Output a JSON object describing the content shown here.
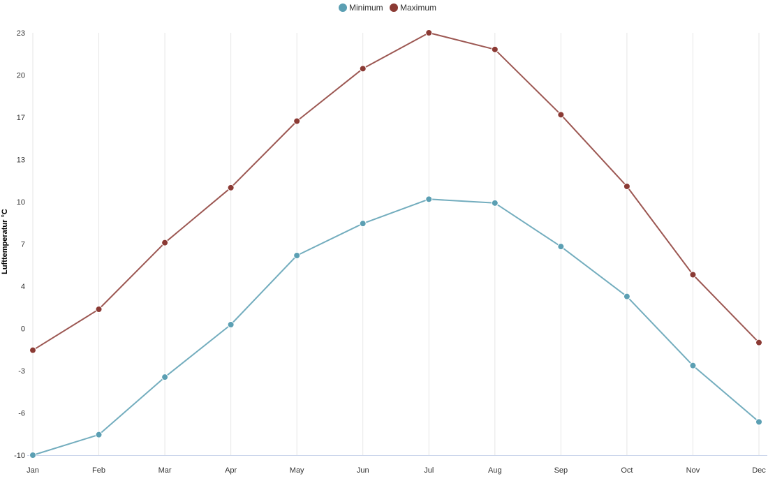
{
  "chart_data": {
    "type": "line",
    "title": "",
    "xlabel": "",
    "ylabel": "Lufttemperatur °C",
    "categories": [
      "Jan",
      "Feb",
      "Mar",
      "Apr",
      "May",
      "Jun",
      "Jul",
      "Aug",
      "Sep",
      "Oct",
      "Nov",
      "Dec"
    ],
    "y_ticks": [
      "-10",
      "-6",
      "-3",
      "0",
      "4",
      "7",
      "10",
      "13",
      "17",
      "20",
      "23"
    ],
    "ylim": [
      -10,
      23
    ],
    "legend_position": "top-center",
    "grid": "vertical",
    "series": [
      {
        "name": "Minimum",
        "color": "#5b9fb3",
        "values": [
          -10.0,
          -8.4,
          -3.9,
          0.2,
          5.6,
          8.1,
          10.0,
          9.7,
          6.3,
          2.4,
          -3.0,
          -7.4
        ]
      },
      {
        "name": "Maximum",
        "color": "#8b3a34",
        "values": [
          -1.8,
          1.4,
          6.6,
          10.9,
          16.1,
          20.2,
          23.0,
          21.7,
          16.6,
          11.0,
          4.1,
          -1.2
        ]
      }
    ]
  }
}
